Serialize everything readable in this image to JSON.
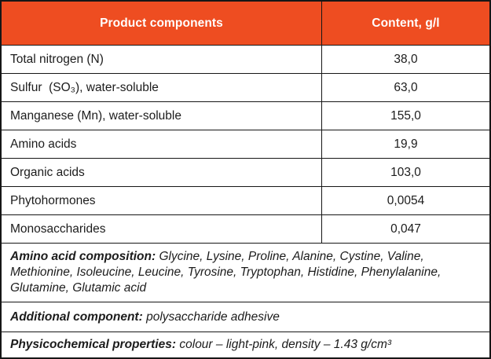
{
  "colors": {
    "header_bg": "#EE4D21",
    "header_text": "#FFFFFF",
    "border": "#161616",
    "body_text": "#1C1C1C"
  },
  "chart_data": {
    "type": "table",
    "columns": [
      "Product components",
      "Content, g/l"
    ],
    "rows": [
      {
        "label": "Total nitrogen (N)",
        "value": "38,0"
      },
      {
        "label": "Sulfur  (SO₃), water-soluble",
        "value": "63,0"
      },
      {
        "label": "Manganese (Mn), water-soluble",
        "value": "155,0"
      },
      {
        "label": "Amino acids",
        "value": "19,9"
      },
      {
        "label": "Organic acids",
        "value": "103,0"
      },
      {
        "label": "Phytohormones",
        "value": "0,0054"
      },
      {
        "label": "Monosaccharides",
        "value": "0,047"
      }
    ],
    "notes": [
      {
        "label": "Amino acid composition:",
        "text": "Glycine, Lysine, Proline, Alanine, Cystine, Valine, Methionine, Isoleucine, Leucine, Tyrosine, Tryptophan, Histidine, Phenylalanine, Glutamine, Glutamic acid"
      },
      {
        "label": "Additional component:",
        "text": "polysaccharide adhesive"
      },
      {
        "label": "Physicochemical properties:",
        "text": "colour – light-pink, density – 1.43 g/cm³"
      }
    ]
  }
}
